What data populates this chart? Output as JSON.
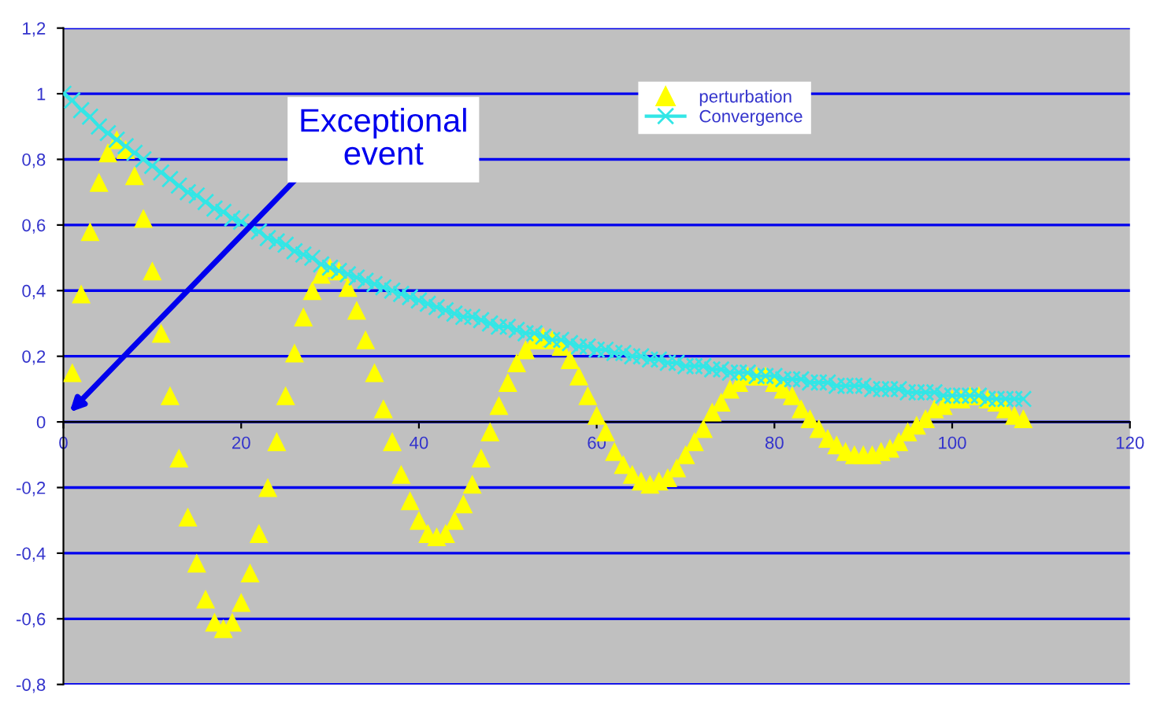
{
  "chart_data": {
    "type": "line",
    "series": [
      {
        "name": "perturbation",
        "type": "scatter",
        "marker": "triangle",
        "color": "#ffff00",
        "x": [
          1,
          2,
          3,
          4,
          5,
          6,
          7,
          8,
          9,
          10,
          11,
          12,
          13,
          14,
          15,
          16,
          17,
          18,
          19,
          20,
          21,
          22,
          23,
          24,
          25,
          26,
          27,
          28,
          29,
          30,
          31,
          32,
          33,
          34,
          35,
          36,
          37,
          38,
          39,
          40,
          41,
          42,
          43,
          44,
          45,
          46,
          47,
          48,
          49,
          50,
          51,
          52,
          53,
          54,
          55,
          56,
          57,
          58,
          59,
          60,
          61,
          62,
          63,
          64,
          65,
          66,
          67,
          68,
          69,
          70,
          71,
          72,
          73,
          74,
          75,
          76,
          77,
          78,
          79,
          80,
          81,
          82,
          83,
          84,
          85,
          86,
          87,
          88,
          89,
          90,
          91,
          92,
          93,
          94,
          95,
          96,
          97,
          98,
          99,
          100,
          101,
          102,
          103,
          104,
          105,
          106,
          107,
          108
        ],
        "values": [
          0.15,
          0.39,
          0.58,
          0.73,
          0.82,
          0.86,
          0.83,
          0.75,
          0.62,
          0.46,
          0.27,
          0.08,
          -0.11,
          -0.29,
          -0.43,
          -0.54,
          -0.61,
          -0.63,
          -0.61,
          -0.55,
          -0.46,
          -0.34,
          -0.2,
          -0.06,
          0.08,
          0.21,
          0.32,
          0.4,
          0.45,
          0.47,
          0.46,
          0.41,
          0.34,
          0.25,
          0.15,
          0.04,
          -0.06,
          -0.16,
          -0.24,
          -0.3,
          -0.34,
          -0.35,
          -0.34,
          -0.3,
          -0.25,
          -0.19,
          -0.11,
          -0.03,
          0.05,
          0.12,
          0.18,
          0.22,
          0.25,
          0.26,
          0.25,
          0.23,
          0.19,
          0.14,
          0.08,
          0.02,
          -0.03,
          -0.09,
          -0.13,
          -0.16,
          -0.18,
          -0.19,
          -0.18,
          -0.17,
          -0.14,
          -0.1,
          -0.06,
          -0.02,
          0.03,
          0.06,
          0.1,
          0.12,
          0.14,
          0.14,
          0.14,
          0.12,
          0.1,
          0.08,
          0.04,
          0.01,
          -0.02,
          -0.05,
          -0.07,
          -0.09,
          -0.1,
          -0.1,
          -0.1,
          -0.09,
          -0.08,
          -0.06,
          -0.03,
          -0.01,
          0.01,
          0.04,
          0.05,
          0.07,
          0.07,
          0.08,
          0.08,
          0.07,
          0.06,
          0.04,
          0.02,
          0.01
        ]
      },
      {
        "name": "Convergence",
        "marker": "cross",
        "line_style": "solid",
        "color": "#33e6e6",
        "x": [
          0,
          1,
          2,
          3,
          4,
          5,
          6,
          7,
          8,
          9,
          10,
          11,
          12,
          13,
          14,
          15,
          16,
          17,
          18,
          19,
          20,
          21,
          22,
          23,
          24,
          25,
          26,
          27,
          28,
          29,
          30,
          31,
          32,
          33,
          34,
          35,
          36,
          37,
          38,
          39,
          40,
          41,
          42,
          43,
          44,
          45,
          46,
          47,
          48,
          49,
          50,
          51,
          52,
          53,
          54,
          55,
          56,
          57,
          58,
          59,
          60,
          61,
          62,
          63,
          64,
          65,
          66,
          67,
          68,
          69,
          70,
          71,
          72,
          73,
          74,
          75,
          76,
          77,
          78,
          79,
          80,
          81,
          82,
          83,
          84,
          85,
          86,
          87,
          88,
          89,
          90,
          91,
          92,
          93,
          94,
          95,
          96,
          97,
          98,
          99,
          100,
          101,
          102,
          103,
          104,
          105,
          106,
          107,
          108
        ],
        "values": [
          1.0,
          0.98,
          0.95,
          0.93,
          0.9,
          0.88,
          0.86,
          0.84,
          0.82,
          0.8,
          0.78,
          0.76,
          0.74,
          0.72,
          0.7,
          0.69,
          0.67,
          0.65,
          0.64,
          0.62,
          0.61,
          0.59,
          0.58,
          0.56,
          0.55,
          0.54,
          0.52,
          0.51,
          0.5,
          0.48,
          0.47,
          0.46,
          0.45,
          0.44,
          0.43,
          0.42,
          0.41,
          0.4,
          0.39,
          0.38,
          0.37,
          0.36,
          0.35,
          0.34,
          0.33,
          0.32,
          0.32,
          0.31,
          0.3,
          0.29,
          0.29,
          0.28,
          0.27,
          0.27,
          0.26,
          0.25,
          0.25,
          0.24,
          0.23,
          0.23,
          0.22,
          0.22,
          0.21,
          0.21,
          0.2,
          0.2,
          0.19,
          0.19,
          0.18,
          0.18,
          0.17,
          0.17,
          0.17,
          0.16,
          0.16,
          0.15,
          0.15,
          0.15,
          0.14,
          0.14,
          0.14,
          0.13,
          0.13,
          0.13,
          0.12,
          0.12,
          0.12,
          0.11,
          0.11,
          0.11,
          0.11,
          0.1,
          0.1,
          0.1,
          0.1,
          0.09,
          0.09,
          0.09,
          0.09,
          0.08,
          0.08,
          0.08,
          0.08,
          0.08,
          0.07,
          0.07,
          0.07,
          0.07,
          0.07
        ]
      }
    ],
    "xlim": [
      0,
      120
    ],
    "xticks": [
      0,
      20,
      40,
      60,
      80,
      100,
      120
    ],
    "ylim": [
      -0.8,
      1.2
    ],
    "yticks": [
      {
        "value": -0.8,
        "label": "-0,8"
      },
      {
        "value": -0.6,
        "label": "-0,6"
      },
      {
        "value": -0.4,
        "label": "-0,4"
      },
      {
        "value": -0.2,
        "label": "-0,2"
      },
      0,
      {
        "value": 0.2,
        "label": "0,2"
      },
      {
        "value": 0.4,
        "label": "0,4"
      },
      {
        "value": 0.6,
        "label": "0,6"
      },
      {
        "value": 0.8,
        "label": "0,8"
      },
      1,
      {
        "value": 1.2,
        "label": "1,2"
      }
    ],
    "grid": "y",
    "legend": "top",
    "annotations": [
      "Exceptional\nevent"
    ]
  }
}
